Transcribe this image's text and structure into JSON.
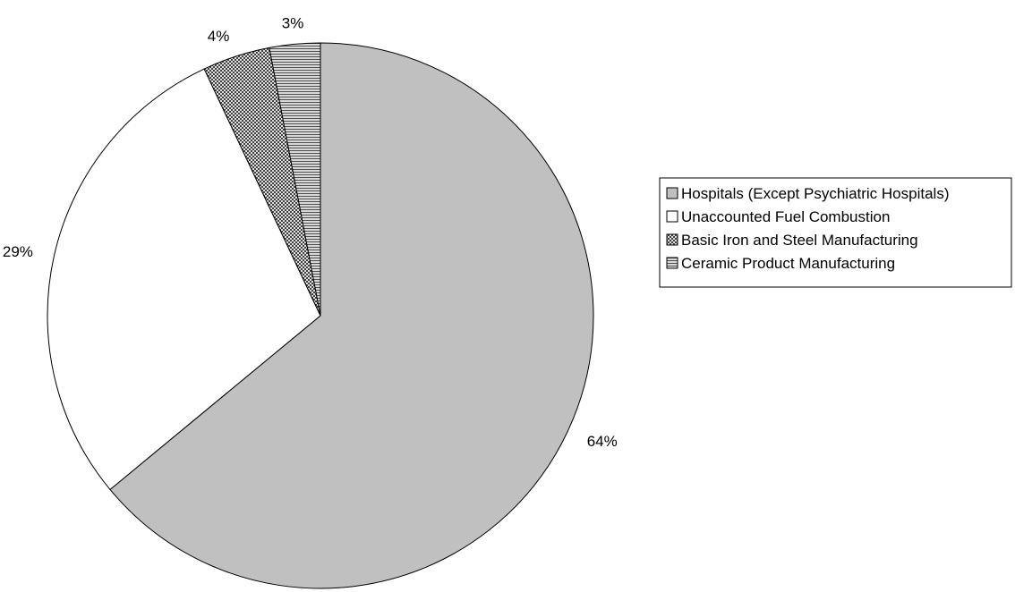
{
  "chart_data": {
    "type": "pie",
    "title": "",
    "slices": [
      {
        "label": "Hospitals (Except Psychiatric Hospitals)",
        "value": 64,
        "value_label": "64%",
        "fill": "#c0c0c0",
        "pattern": "solid"
      },
      {
        "label": "Unaccounted Fuel Combustion",
        "value": 29,
        "value_label": "29%",
        "fill": "#ffffff",
        "pattern": "solid"
      },
      {
        "label": "Basic Iron and Steel Manufacturing",
        "value": 4,
        "value_label": "4%",
        "fill": "#808080",
        "pattern": "crosshatch"
      },
      {
        "label": "Ceramic Product Manufacturing",
        "value": 3,
        "value_label": "3%",
        "fill": "#a0a0a0",
        "pattern": "horizontal-lines"
      }
    ],
    "start_angle": "12 o'clock",
    "direction": "clockwise",
    "legend_position": "right",
    "outline_color": "#000000"
  }
}
